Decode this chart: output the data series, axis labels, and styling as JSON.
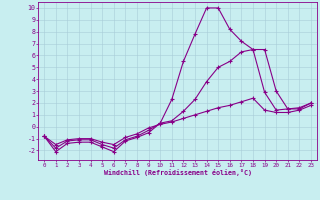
{
  "xlabel": "Windchill (Refroidissement éolien,°C)",
  "bg_color": "#c8eef0",
  "grid_color": "#a8ccd8",
  "line_color": "#880088",
  "xlim": [
    -0.5,
    23.5
  ],
  "ylim": [
    -2.8,
    10.5
  ],
  "xticks": [
    0,
    1,
    2,
    3,
    4,
    5,
    6,
    7,
    8,
    9,
    10,
    11,
    12,
    13,
    14,
    15,
    16,
    17,
    18,
    19,
    20,
    21,
    22,
    23
  ],
  "yticks": [
    -2,
    -1,
    0,
    1,
    2,
    3,
    4,
    5,
    6,
    7,
    8,
    9,
    10
  ],
  "line1_x": [
    0,
    1,
    2,
    3,
    4,
    5,
    6,
    7,
    8,
    9,
    10,
    11,
    12,
    13,
    14,
    15,
    16,
    17,
    18,
    19,
    20,
    21,
    22,
    23
  ],
  "line1_y": [
    -0.8,
    -2.1,
    -1.4,
    -1.3,
    -1.3,
    -1.7,
    -2.1,
    -1.2,
    -0.9,
    -0.5,
    0.3,
    2.3,
    5.5,
    7.8,
    10.0,
    10.0,
    8.2,
    7.2,
    6.5,
    6.5,
    3.0,
    1.5,
    1.5,
    2.0
  ],
  "line2_x": [
    0,
    1,
    2,
    3,
    4,
    5,
    6,
    7,
    8,
    9,
    10,
    11,
    12,
    13,
    14,
    15,
    16,
    17,
    18,
    19,
    20,
    21,
    22,
    23
  ],
  "line2_y": [
    -0.8,
    -1.8,
    -1.2,
    -1.1,
    -1.1,
    -1.5,
    -1.8,
    -1.1,
    -0.8,
    -0.3,
    0.3,
    0.5,
    1.3,
    2.3,
    3.8,
    5.0,
    5.5,
    6.3,
    6.5,
    2.9,
    1.4,
    1.5,
    1.6,
    2.0
  ],
  "line3_x": [
    0,
    1,
    2,
    3,
    4,
    5,
    6,
    7,
    8,
    9,
    10,
    11,
    12,
    13,
    14,
    15,
    16,
    17,
    18,
    19,
    20,
    21,
    22,
    23
  ],
  "line3_y": [
    -0.8,
    -1.5,
    -1.1,
    -1.0,
    -1.0,
    -1.3,
    -1.5,
    -0.9,
    -0.6,
    -0.1,
    0.2,
    0.4,
    0.7,
    1.0,
    1.3,
    1.6,
    1.8,
    2.1,
    2.4,
    1.4,
    1.2,
    1.2,
    1.4,
    1.8
  ]
}
